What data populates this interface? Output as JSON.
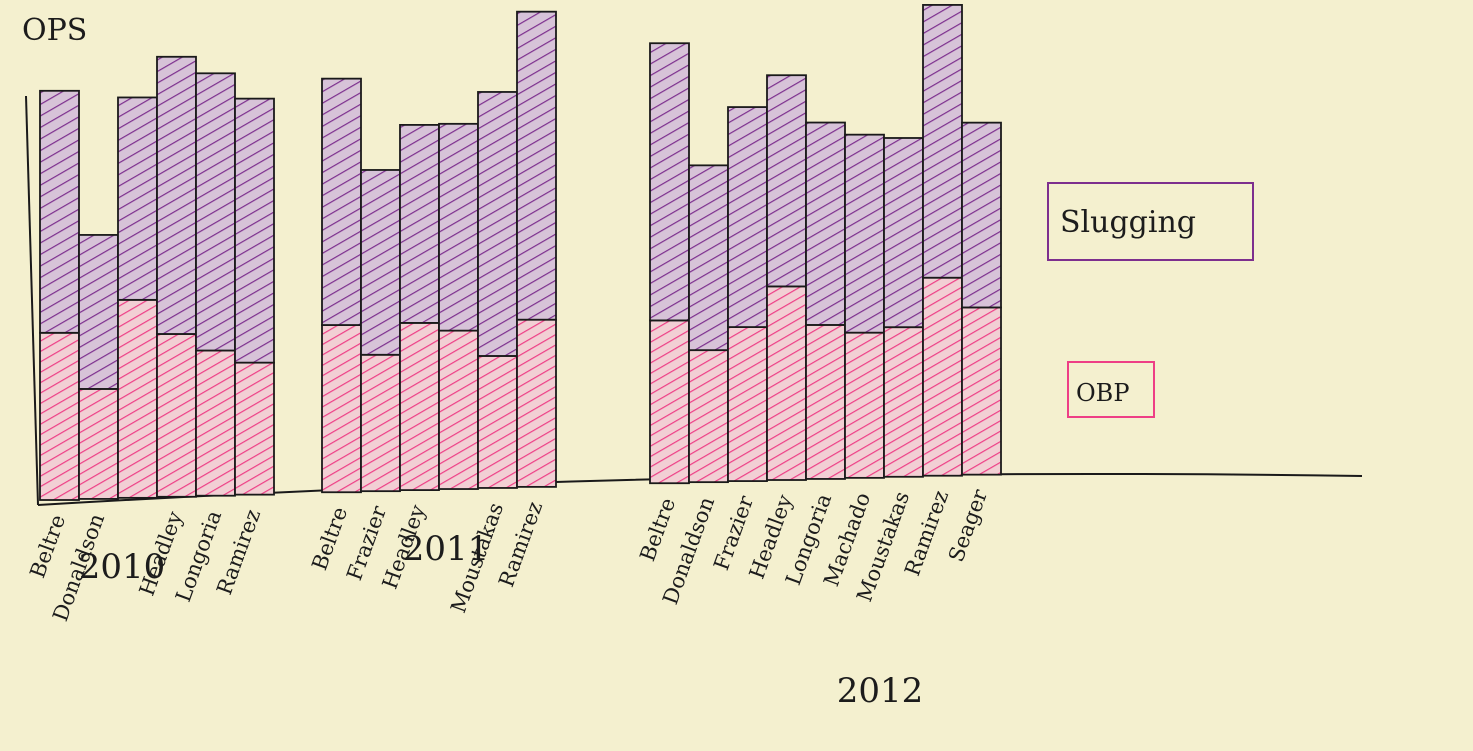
{
  "chart_data": {
    "type": "bar",
    "stacked": true,
    "title": "OPS",
    "legend": {
      "position": "right"
    },
    "colors": {
      "slugging": "#7d2f8e",
      "obp": "#ee3f86",
      "outline": "#1a1a1a",
      "paper": "#f4f0cf"
    },
    "series": [
      {
        "name": "OBP",
        "key": "obp"
      },
      {
        "name": "Slugging",
        "key": "slg"
      }
    ],
    "groups": [
      {
        "label": "2010",
        "bars": [
          {
            "player": "Beltre",
            "obp": 0.38,
            "slg": 0.55
          },
          {
            "player": "Donaldson",
            "obp": 0.25,
            "slg": 0.35
          },
          {
            "player": "",
            "obp": 0.45,
            "slg": 0.46
          },
          {
            "player": "Headley",
            "obp": 0.37,
            "slg": 0.63
          },
          {
            "player": "Longoria",
            "obp": 0.33,
            "slg": 0.63
          },
          {
            "player": "Ramirez",
            "obp": 0.3,
            "slg": 0.6
          }
        ]
      },
      {
        "label": "2011",
        "bars": [
          {
            "player": "Beltre",
            "obp": 0.38,
            "slg": 0.56
          },
          {
            "player": "Frazier",
            "obp": 0.31,
            "slg": 0.42
          },
          {
            "player": "Headley",
            "obp": 0.38,
            "slg": 0.45
          },
          {
            "player": "",
            "obp": 0.36,
            "slg": 0.47
          },
          {
            "player": "Moustakas",
            "obp": 0.3,
            "slg": 0.6
          },
          {
            "player": "Ramirez",
            "obp": 0.38,
            "slg": 0.7
          }
        ]
      },
      {
        "label": "2012",
        "bars": [
          {
            "player": "Beltre",
            "obp": 0.37,
            "slg": 0.63
          },
          {
            "player": "Donaldson",
            "obp": 0.3,
            "slg": 0.42
          },
          {
            "player": "Frazier",
            "obp": 0.35,
            "slg": 0.5
          },
          {
            "player": "Headley",
            "obp": 0.44,
            "slg": 0.48
          },
          {
            "player": "Longoria",
            "obp": 0.35,
            "slg": 0.46
          },
          {
            "player": "Machado",
            "obp": 0.33,
            "slg": 0.45
          },
          {
            "player": "Moustakas",
            "obp": 0.34,
            "slg": 0.43
          },
          {
            "player": "Ramirez",
            "obp": 0.45,
            "slg": 0.62
          },
          {
            "player": "Seager",
            "obp": 0.38,
            "slg": 0.42
          }
        ]
      }
    ]
  }
}
